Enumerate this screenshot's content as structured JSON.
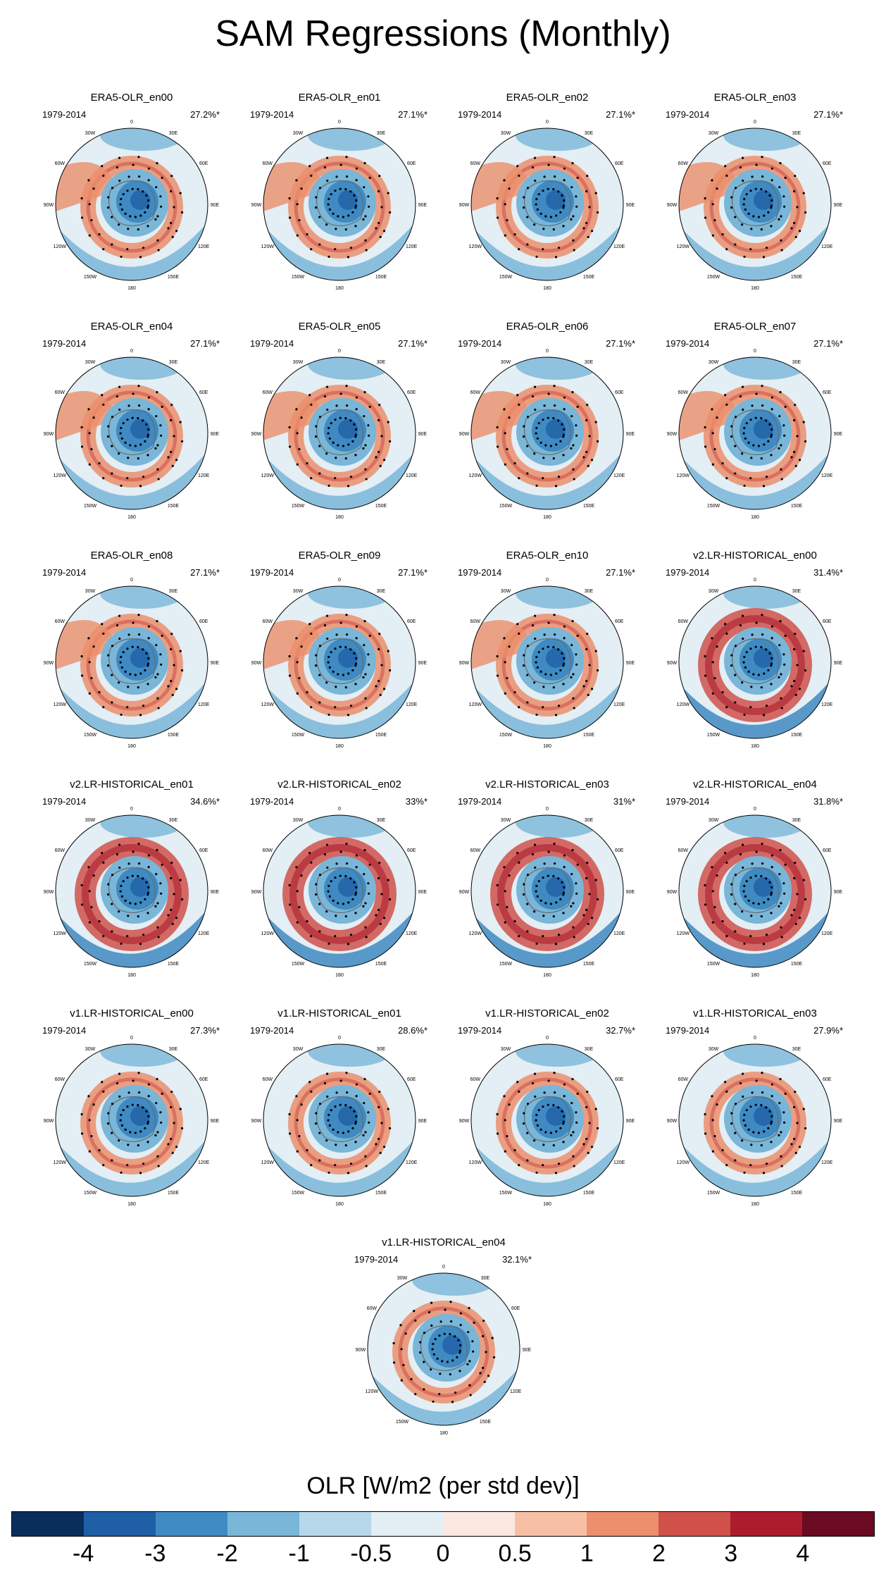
{
  "title": "SAM Regressions (Monthly)",
  "period": "1979-2014",
  "lon_labels": [
    "0",
    "30E",
    "60E",
    "90E",
    "120E",
    "150E",
    "180",
    "150W",
    "120W",
    "90W",
    "60W",
    "30W"
  ],
  "panels": [
    {
      "name": "ERA5-OLR_en00",
      "variance": "27.2%*",
      "style": "obs"
    },
    {
      "name": "ERA5-OLR_en01",
      "variance": "27.1%*",
      "style": "obs"
    },
    {
      "name": "ERA5-OLR_en02",
      "variance": "27.1%*",
      "style": "obs"
    },
    {
      "name": "ERA5-OLR_en03",
      "variance": "27.1%*",
      "style": "obs"
    },
    {
      "name": "ERA5-OLR_en04",
      "variance": "27.1%*",
      "style": "obs"
    },
    {
      "name": "ERA5-OLR_en05",
      "variance": "27.1%*",
      "style": "obs"
    },
    {
      "name": "ERA5-OLR_en06",
      "variance": "27.1%*",
      "style": "obs"
    },
    {
      "name": "ERA5-OLR_en07",
      "variance": "27.1%*",
      "style": "obs"
    },
    {
      "name": "ERA5-OLR_en08",
      "variance": "27.1%*",
      "style": "obs"
    },
    {
      "name": "ERA5-OLR_en09",
      "variance": "27.1%*",
      "style": "obs"
    },
    {
      "name": "ERA5-OLR_en10",
      "variance": "27.1%*",
      "style": "obs"
    },
    {
      "name": "v2.LR-HISTORICAL_en00",
      "variance": "31.4%*",
      "style": "v2"
    },
    {
      "name": "v2.LR-HISTORICAL_en01",
      "variance": "34.6%*",
      "style": "v2"
    },
    {
      "name": "v2.LR-HISTORICAL_en02",
      "variance": "33%*",
      "style": "v2"
    },
    {
      "name": "v2.LR-HISTORICAL_en03",
      "variance": "31%*",
      "style": "v2"
    },
    {
      "name": "v2.LR-HISTORICAL_en04",
      "variance": "31.8%*",
      "style": "v2"
    },
    {
      "name": "v1.LR-HISTORICAL_en00",
      "variance": "27.3%*",
      "style": "v1"
    },
    {
      "name": "v1.LR-HISTORICAL_en01",
      "variance": "28.6%*",
      "style": "v1"
    },
    {
      "name": "v1.LR-HISTORICAL_en02",
      "variance": "32.7%*",
      "style": "v1"
    },
    {
      "name": "v1.LR-HISTORICAL_en03",
      "variance": "27.9%*",
      "style": "v1"
    },
    {
      "name": "v1.LR-HISTORICAL_en04",
      "variance": "32.1%*",
      "style": "v1"
    }
  ],
  "colorbar": {
    "title": "OLR [W/m2 (per std dev)]",
    "labels": [
      "-4",
      "-3",
      "-2",
      "-1",
      "-0.5",
      "0",
      "0.5",
      "1",
      "2",
      "3",
      "4"
    ],
    "colors": [
      "#0a2e5c",
      "#1f5fa6",
      "#3f8ac2",
      "#79b6d8",
      "#b7d8ea",
      "#e3eef5",
      "#fbe8e0",
      "#f7c0a4",
      "#eb8f6c",
      "#d0514a",
      "#ab1c2c",
      "#6a0a23"
    ]
  }
}
